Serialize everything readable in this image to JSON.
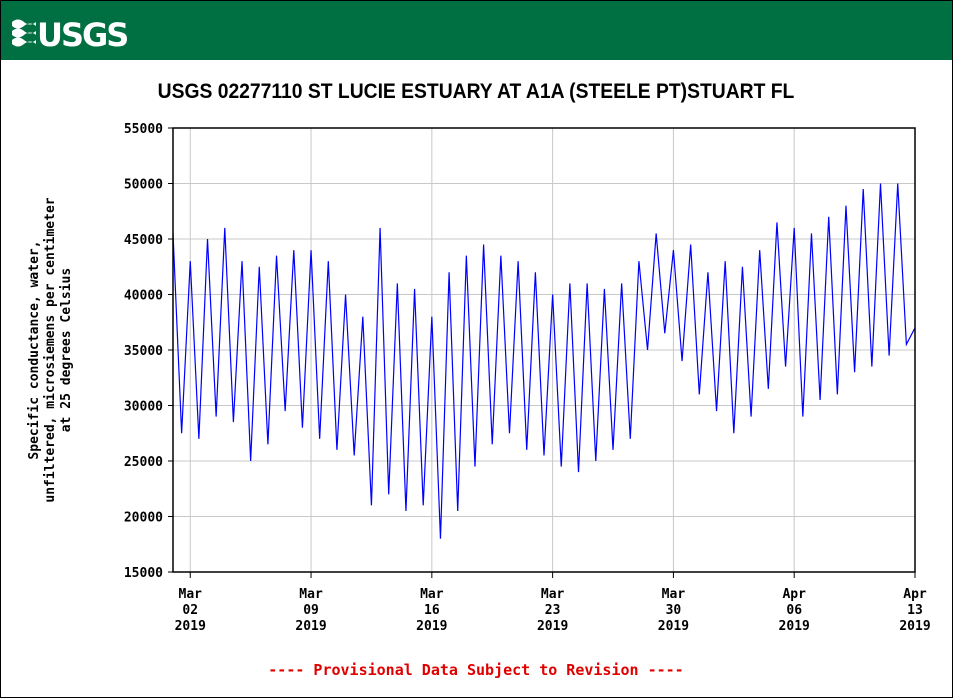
{
  "header": {
    "logo": "USGS"
  },
  "chart_data": {
    "type": "line",
    "title": "USGS 02277110 ST LUCIE ESTUARY AT A1A (STEELE PT)STUART FL",
    "ylabel": [
      "Specific conductance, water,",
      "unfiltered, microsiemens per centimeter",
      "at 25 degrees Celsius"
    ],
    "xlim": [
      "2019-03-01",
      "2019-04-13"
    ],
    "xticks": [
      {
        "value": "2019-03-02",
        "label": "Mar 02 2019"
      },
      {
        "value": "2019-03-09",
        "label": "Mar 09 2019"
      },
      {
        "value": "2019-03-16",
        "label": "Mar 16 2019"
      },
      {
        "value": "2019-03-23",
        "label": "Mar 23 2019"
      },
      {
        "value": "2019-03-30",
        "label": "Mar 30 2019"
      },
      {
        "value": "2019-04-06",
        "label": "Apr 06 2019"
      },
      {
        "value": "2019-04-13",
        "label": "Apr 13 2019"
      }
    ],
    "ylim": [
      15000,
      55000
    ],
    "yticks": [
      15000,
      20000,
      25000,
      30000,
      35000,
      40000,
      45000,
      50000,
      55000
    ],
    "grid": true,
    "series": [
      {
        "color": "#0000ff",
        "values": [
          45500,
          27500,
          43000,
          27000,
          45000,
          29000,
          46000,
          28500,
          43000,
          25000,
          42500,
          26500,
          43500,
          29500,
          44000,
          28000,
          44000,
          27000,
          43000,
          26000,
          40000,
          25500,
          38000,
          21000,
          46000,
          22000,
          41000,
          20500,
          40500,
          21000,
          38000,
          18000,
          42000,
          20500,
          43500,
          24500,
          44500,
          26500,
          43500,
          27500,
          43000,
          26000,
          42000,
          25500,
          40000,
          24500,
          41000,
          24000,
          41000,
          25000,
          40500,
          26000,
          41000,
          27000,
          43000,
          35000,
          45500,
          36500,
          44000,
          34000,
          44500,
          31000,
          42000,
          29500,
          43000,
          27500,
          42500,
          29000,
          44000,
          31500,
          46500,
          33500,
          46000,
          29000,
          45500,
          30500,
          47000,
          31000,
          48000,
          33000,
          49500,
          33500,
          50000,
          34500,
          50000,
          35500,
          37000
        ]
      }
    ],
    "footnote": "---- Provisional Data Subject to Revision ----"
  }
}
